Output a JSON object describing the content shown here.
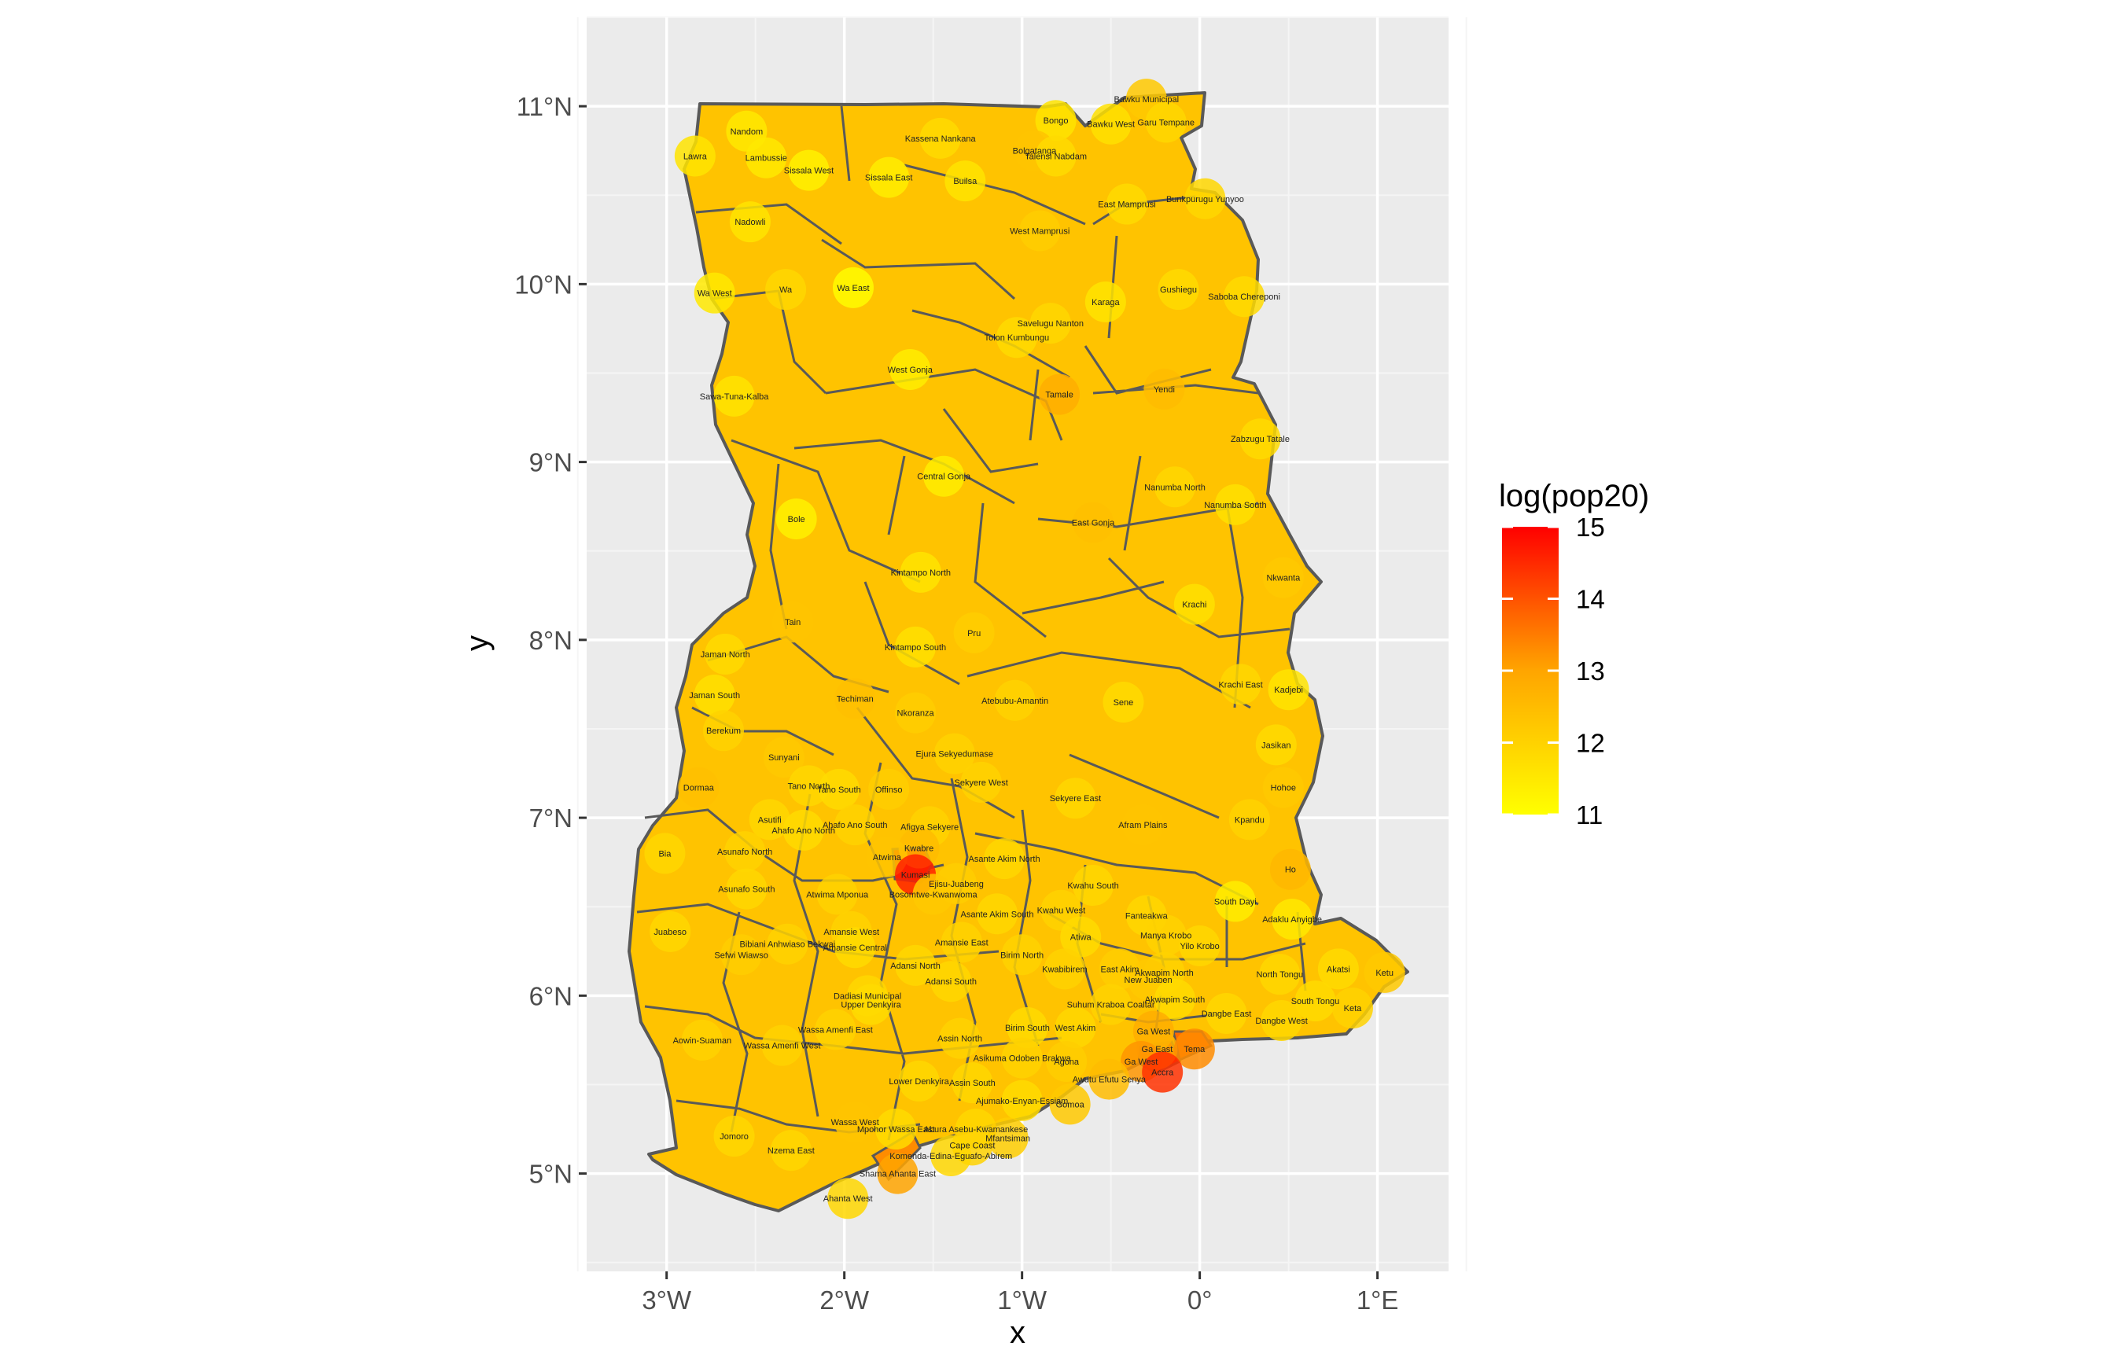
{
  "chart_data": {
    "type": "choropleth-map",
    "xlabel": "x",
    "ylabel": "y",
    "x_ticks": [
      "3°W",
      "2°W",
      "1°W",
      "0°",
      "1°E"
    ],
    "y_ticks": [
      "5°N",
      "6°N",
      "7°N",
      "8°N",
      "9°N",
      "10°N",
      "11°N"
    ],
    "xlim": [
      -3.45,
      1.4
    ],
    "ylim": [
      4.45,
      11.5
    ],
    "legend": {
      "title": "log(pop20)",
      "placement": "right",
      "min": 11,
      "max": 15,
      "ticks": [
        "15",
        "14",
        "13",
        "12",
        "11"
      ],
      "colors": {
        "low": "#FFFF00",
        "mid": "#FFA500",
        "high": "#FF0000"
      }
    },
    "colors": {
      "panel": "#EBEBEB",
      "grid": "#FFFFFF",
      "border": "#595959"
    },
    "districts": [
      {
        "name": "Lawra",
        "lon": -2.84,
        "lat": 10.72,
        "value": 11.6
      },
      {
        "name": "Nandom",
        "lon": -2.55,
        "lat": 10.86,
        "value": 11.5
      },
      {
        "name": "Lambussie",
        "lon": -2.44,
        "lat": 10.71,
        "value": 11.5
      },
      {
        "name": "Sissala West",
        "lon": -2.2,
        "lat": 10.64,
        "value": 11.3
      },
      {
        "name": "Sissala East",
        "lon": -1.75,
        "lat": 10.6,
        "value": 11.4
      },
      {
        "name": "Kassena Nankana",
        "lon": -1.46,
        "lat": 10.82,
        "value": 11.8
      },
      {
        "name": "Builsa",
        "lon": -1.32,
        "lat": 10.58,
        "value": 11.6
      },
      {
        "name": "Bongo",
        "lon": -0.81,
        "lat": 10.92,
        "value": 11.6
      },
      {
        "name": "Bolgatanga",
        "lon": -0.93,
        "lat": 10.75,
        "value": 12.3
      },
      {
        "name": "Talensi Nabdam",
        "lon": -0.81,
        "lat": 10.72,
        "value": 11.8
      },
      {
        "name": "Bawku Municipal",
        "lon": -0.3,
        "lat": 11.04,
        "value": 12.2
      },
      {
        "name": "Bawku West",
        "lon": -0.5,
        "lat": 10.9,
        "value": 11.7
      },
      {
        "name": "Garu Tempane",
        "lon": -0.19,
        "lat": 10.91,
        "value": 11.9
      },
      {
        "name": "East Mamprusi",
        "lon": -0.41,
        "lat": 10.45,
        "value": 11.8
      },
      {
        "name": "Bunkpurugu Yunyoo",
        "lon": 0.03,
        "lat": 10.48,
        "value": 11.9
      },
      {
        "name": "West Mamprusi",
        "lon": -0.9,
        "lat": 10.3,
        "value": 12.1
      },
      {
        "name": "Nadowli",
        "lon": -2.53,
        "lat": 10.35,
        "value": 11.6
      },
      {
        "name": "Wa West",
        "lon": -2.73,
        "lat": 9.95,
        "value": 11.5
      },
      {
        "name": "Wa",
        "lon": -2.33,
        "lat": 9.97,
        "value": 11.9
      },
      {
        "name": "Wa East",
        "lon": -1.95,
        "lat": 9.98,
        "value": 11.1
      },
      {
        "name": "Karaga",
        "lon": -0.53,
        "lat": 9.9,
        "value": 11.6
      },
      {
        "name": "Gushiegu",
        "lon": -0.12,
        "lat": 9.97,
        "value": 11.8
      },
      {
        "name": "Saboba Chereponi",
        "lon": 0.25,
        "lat": 9.93,
        "value": 11.8
      },
      {
        "name": "Savelugu Nanton",
        "lon": -0.84,
        "lat": 9.78,
        "value": 11.9
      },
      {
        "name": "Tolon Kumbungu",
        "lon": -1.03,
        "lat": 9.7,
        "value": 11.8
      },
      {
        "name": "West Gonja",
        "lon": -1.63,
        "lat": 9.52,
        "value": 11.4
      },
      {
        "name": "Sawa-Tuna-Kalba",
        "lon": -2.62,
        "lat": 9.37,
        "value": 11.6
      },
      {
        "name": "Tamale",
        "lon": -0.79,
        "lat": 9.38,
        "value": 12.8
      },
      {
        "name": "Yendi",
        "lon": -0.2,
        "lat": 9.41,
        "value": 12.5
      },
      {
        "name": "Zabzugu Tatale",
        "lon": 0.34,
        "lat": 9.13,
        "value": 11.8
      },
      {
        "name": "Central Gonja",
        "lon": -1.44,
        "lat": 8.92,
        "value": 11.4
      },
      {
        "name": "Nanumba North",
        "lon": -0.14,
        "lat": 8.86,
        "value": 11.9
      },
      {
        "name": "Nanumba South",
        "lon": 0.2,
        "lat": 8.76,
        "value": 11.7
      },
      {
        "name": "Bole",
        "lon": -2.27,
        "lat": 8.68,
        "value": 11.3
      },
      {
        "name": "East Gonja",
        "lon": -0.6,
        "lat": 8.66,
        "value": 12.4
      },
      {
        "name": "Kintampo North",
        "lon": -1.57,
        "lat": 8.38,
        "value": 11.6
      },
      {
        "name": "Nkwanta",
        "lon": 0.47,
        "lat": 8.35,
        "value": 12.2
      },
      {
        "name": "Krachi",
        "lon": -0.03,
        "lat": 8.2,
        "value": 11.7
      },
      {
        "name": "Tain",
        "lon": -2.29,
        "lat": 8.1,
        "value": 12.3
      },
      {
        "name": "Pru",
        "lon": -1.27,
        "lat": 8.04,
        "value": 12.1
      },
      {
        "name": "Kintampo South",
        "lon": -1.6,
        "lat": 7.96,
        "value": 11.7
      },
      {
        "name": "Jaman North",
        "lon": -2.67,
        "lat": 7.92,
        "value": 11.8
      },
      {
        "name": "Krachi East",
        "lon": 0.23,
        "lat": 7.75,
        "value": 11.9
      },
      {
        "name": "Kadjebi",
        "lon": 0.5,
        "lat": 7.72,
        "value": 11.6
      },
      {
        "name": "Jaman South",
        "lon": -2.73,
        "lat": 7.69,
        "value": 11.7
      },
      {
        "name": "Techiman",
        "lon": -1.94,
        "lat": 7.67,
        "value": 12.4
      },
      {
        "name": "Atebubu-Amantin",
        "lon": -1.04,
        "lat": 7.66,
        "value": 12.0
      },
      {
        "name": "Sene",
        "lon": -0.43,
        "lat": 7.65,
        "value": 11.8
      },
      {
        "name": "Nkoranza",
        "lon": -1.6,
        "lat": 7.59,
        "value": 12.1
      },
      {
        "name": "Berekum",
        "lon": -2.68,
        "lat": 7.49,
        "value": 12.0
      },
      {
        "name": "Jasikan",
        "lon": 0.43,
        "lat": 7.41,
        "value": 11.8
      },
      {
        "name": "Ejura Sekyedumase",
        "lon": -1.38,
        "lat": 7.36,
        "value": 12.0
      },
      {
        "name": "Sunyani",
        "lon": -2.34,
        "lat": 7.34,
        "value": 12.2
      },
      {
        "name": "Sekyere West",
        "lon": -1.23,
        "lat": 7.2,
        "value": 12.0
      },
      {
        "name": "Dormaa",
        "lon": -2.82,
        "lat": 7.17,
        "value": 12.4
      },
      {
        "name": "Tano North",
        "lon": -2.2,
        "lat": 7.18,
        "value": 11.9
      },
      {
        "name": "Tano South",
        "lon": -2.03,
        "lat": 7.16,
        "value": 11.8
      },
      {
        "name": "Offinso",
        "lon": -1.75,
        "lat": 7.16,
        "value": 12.1
      },
      {
        "name": "Sekyere East",
        "lon": -0.7,
        "lat": 7.11,
        "value": 11.9
      },
      {
        "name": "Hohoe",
        "lon": 0.47,
        "lat": 7.17,
        "value": 12.2
      },
      {
        "name": "Asutifi",
        "lon": -2.42,
        "lat": 6.99,
        "value": 11.9
      },
      {
        "name": "Ahafo Ano South",
        "lon": -1.94,
        "lat": 6.96,
        "value": 12.0
      },
      {
        "name": "Ahafo Ano North",
        "lon": -2.23,
        "lat": 6.93,
        "value": 11.8
      },
      {
        "name": "Afigya Sekyere",
        "lon": -1.52,
        "lat": 6.95,
        "value": 12.0
      },
      {
        "name": "Afram Plains",
        "lon": -0.32,
        "lat": 6.96,
        "value": 12.3
      },
      {
        "name": "Kpandu",
        "lon": 0.28,
        "lat": 6.99,
        "value": 12.0
      },
      {
        "name": "Kwabre",
        "lon": -1.58,
        "lat": 6.83,
        "value": 12.5
      },
      {
        "name": "Asunafo North",
        "lon": -2.56,
        "lat": 6.81,
        "value": 12.0
      },
      {
        "name": "Atwima",
        "lon": -1.76,
        "lat": 6.78,
        "value": 12.3
      },
      {
        "name": "Asante Akim North",
        "lon": -1.1,
        "lat": 6.77,
        "value": 11.9
      },
      {
        "name": "Bia",
        "lon": -3.01,
        "lat": 6.8,
        "value": 11.9
      },
      {
        "name": "Kumasi",
        "lon": -1.6,
        "lat": 6.68,
        "value": 14.6
      },
      {
        "name": "Ejisu-Juabeng",
        "lon": -1.37,
        "lat": 6.63,
        "value": 12.1
      },
      {
        "name": "Ho",
        "lon": 0.51,
        "lat": 6.71,
        "value": 12.6
      },
      {
        "name": "Asunafo South",
        "lon": -2.55,
        "lat": 6.6,
        "value": 11.9
      },
      {
        "name": "Kwahu South",
        "lon": -0.6,
        "lat": 6.62,
        "value": 11.9
      },
      {
        "name": "Bosomtwe-Kwanwoma",
        "lon": -1.5,
        "lat": 6.57,
        "value": 12.2
      },
      {
        "name": "Atwima Mponua",
        "lon": -2.04,
        "lat": 6.57,
        "value": 12.0
      },
      {
        "name": "South Dayi",
        "lon": 0.2,
        "lat": 6.53,
        "value": 11.4
      },
      {
        "name": "Asante Akim South",
        "lon": -1.14,
        "lat": 6.46,
        "value": 11.9
      },
      {
        "name": "Kwahu West",
        "lon": -0.78,
        "lat": 6.48,
        "value": 12.0
      },
      {
        "name": "Adaklu Anyigbe",
        "lon": 0.52,
        "lat": 6.43,
        "value": 11.5
      },
      {
        "name": "Fanteakwa",
        "lon": -0.3,
        "lat": 6.45,
        "value": 11.9
      },
      {
        "name": "Juabeso",
        "lon": -2.98,
        "lat": 6.36,
        "value": 11.9
      },
      {
        "name": "Amansie West",
        "lon": -1.96,
        "lat": 6.36,
        "value": 12.0
      },
      {
        "name": "Atiwa",
        "lon": -0.67,
        "lat": 6.33,
        "value": 11.8
      },
      {
        "name": "Manya Krobo",
        "lon": -0.19,
        "lat": 6.34,
        "value": 12.0
      },
      {
        "name": "Yilo Krobo",
        "lon": 0.0,
        "lat": 6.28,
        "value": 11.9
      },
      {
        "name": "Bibiani Anhwiaso Bekwai",
        "lon": -2.32,
        "lat": 6.29,
        "value": 12.0
      },
      {
        "name": "Amansie Central",
        "lon": -1.94,
        "lat": 6.27,
        "value": 11.8
      },
      {
        "name": "Amansie East",
        "lon": -1.34,
        "lat": 6.3,
        "value": 12.0
      },
      {
        "name": "Sefwi Wiawso",
        "lon": -2.58,
        "lat": 6.23,
        "value": 12.1
      },
      {
        "name": "Birim North",
        "lon": -1.0,
        "lat": 6.23,
        "value": 12.0
      },
      {
        "name": "Adansi North",
        "lon": -1.6,
        "lat": 6.17,
        "value": 11.9
      },
      {
        "name": "Kwabibirem",
        "lon": -0.76,
        "lat": 6.15,
        "value": 12.0
      },
      {
        "name": "East Akim",
        "lon": -0.45,
        "lat": 6.15,
        "value": 12.1
      },
      {
        "name": "Akwapim North",
        "lon": -0.2,
        "lat": 6.13,
        "value": 12.0
      },
      {
        "name": "New Juaben",
        "lon": -0.29,
        "lat": 6.09,
        "value": 12.2
      },
      {
        "name": "North Tongu",
        "lon": 0.45,
        "lat": 6.12,
        "value": 11.9
      },
      {
        "name": "Akatsi",
        "lon": 0.78,
        "lat": 6.15,
        "value": 11.8
      },
      {
        "name": "Ketu",
        "lon": 1.04,
        "lat": 6.13,
        "value": 12.2
      },
      {
        "name": "Adansi South",
        "lon": -1.4,
        "lat": 6.08,
        "value": 11.9
      },
      {
        "name": "Dadiasi Municipal",
        "lon": -1.87,
        "lat": 6.0,
        "value": 11.9
      },
      {
        "name": "Upper Denkyira",
        "lon": -1.85,
        "lat": 5.95,
        "value": 11.8
      },
      {
        "name": "Suhum Kraboa Coaltar",
        "lon": -0.5,
        "lat": 5.95,
        "value": 12.0
      },
      {
        "name": "Akwapim South",
        "lon": -0.14,
        "lat": 5.98,
        "value": 11.8
      },
      {
        "name": "South Tongu",
        "lon": 0.65,
        "lat": 5.97,
        "value": 11.8
      },
      {
        "name": "Dangbe East",
        "lon": 0.15,
        "lat": 5.9,
        "value": 11.9
      },
      {
        "name": "Keta",
        "lon": 0.86,
        "lat": 5.93,
        "value": 12.0
      },
      {
        "name": "Birim South",
        "lon": -0.97,
        "lat": 5.82,
        "value": 11.8
      },
      {
        "name": "West Akim",
        "lon": -0.7,
        "lat": 5.82,
        "value": 11.9
      },
      {
        "name": "Dangbe West",
        "lon": 0.46,
        "lat": 5.86,
        "value": 11.9
      },
      {
        "name": "Wassa Amenfi East",
        "lon": -2.05,
        "lat": 5.81,
        "value": 12.0
      },
      {
        "name": "Assin North",
        "lon": -1.35,
        "lat": 5.76,
        "value": 12.0
      },
      {
        "name": "Ga West",
        "lon": -0.26,
        "lat": 5.8,
        "value": 12.8
      },
      {
        "name": "Aowin-Suaman",
        "lon": -2.8,
        "lat": 5.75,
        "value": 12.0
      },
      {
        "name": "Wassa Amenfi West",
        "lon": -2.35,
        "lat": 5.72,
        "value": 12.0
      },
      {
        "name": "Ga East",
        "lon": -0.24,
        "lat": 5.7,
        "value": 12.7
      },
      {
        "name": "Tema",
        "lon": -0.03,
        "lat": 5.7,
        "value": 13.3
      },
      {
        "name": "Agona",
        "lon": -0.75,
        "lat": 5.63,
        "value": 12.1
      },
      {
        "name": "Ga West",
        "lon": -0.33,
        "lat": 5.63,
        "value": 13.2
      },
      {
        "name": "Asikuma Odoben Brakwa",
        "lon": -1.0,
        "lat": 5.65,
        "value": 12.0
      },
      {
        "name": "Accra",
        "lon": -0.21,
        "lat": 5.57,
        "value": 14.4
      },
      {
        "name": "Awutu Efutu Senya",
        "lon": -0.51,
        "lat": 5.53,
        "value": 12.5
      },
      {
        "name": "Lower Denkyira",
        "lon": -1.58,
        "lat": 5.52,
        "value": 11.9
      },
      {
        "name": "Assin South",
        "lon": -1.28,
        "lat": 5.51,
        "value": 11.9
      },
      {
        "name": "Ajumako-Enyan-Essiam",
        "lon": -1.0,
        "lat": 5.41,
        "value": 11.8
      },
      {
        "name": "Gomoa",
        "lon": -0.73,
        "lat": 5.39,
        "value": 12.2
      },
      {
        "name": "Jomoro",
        "lon": -2.62,
        "lat": 5.21,
        "value": 11.9
      },
      {
        "name": "Wassa West",
        "lon": -1.94,
        "lat": 5.29,
        "value": 12.3
      },
      {
        "name": "Mpohor Wassa East",
        "lon": -1.71,
        "lat": 5.25,
        "value": 11.8
      },
      {
        "name": "Abura Asebu-Kwamankese",
        "lon": -1.26,
        "lat": 5.25,
        "value": 11.9
      },
      {
        "name": "Cape Coast",
        "lon": -1.28,
        "lat": 5.16,
        "value": 12.0
      },
      {
        "name": "Nzema East",
        "lon": -2.3,
        "lat": 5.13,
        "value": 11.9
      },
      {
        "name": "Komenda-Edina-Eguafo-Abirem",
        "lon": -1.4,
        "lat": 5.1,
        "value": 11.9
      },
      {
        "name": "Mfantsiman",
        "lon": -1.08,
        "lat": 5.2,
        "value": 12.1
      },
      {
        "name": "Shama Ahanta East",
        "lon": -1.7,
        "lat": 5.0,
        "value": 13.0
      },
      {
        "name": "Ahanta West",
        "lon": -1.98,
        "lat": 4.86,
        "value": 11.9
      }
    ]
  }
}
